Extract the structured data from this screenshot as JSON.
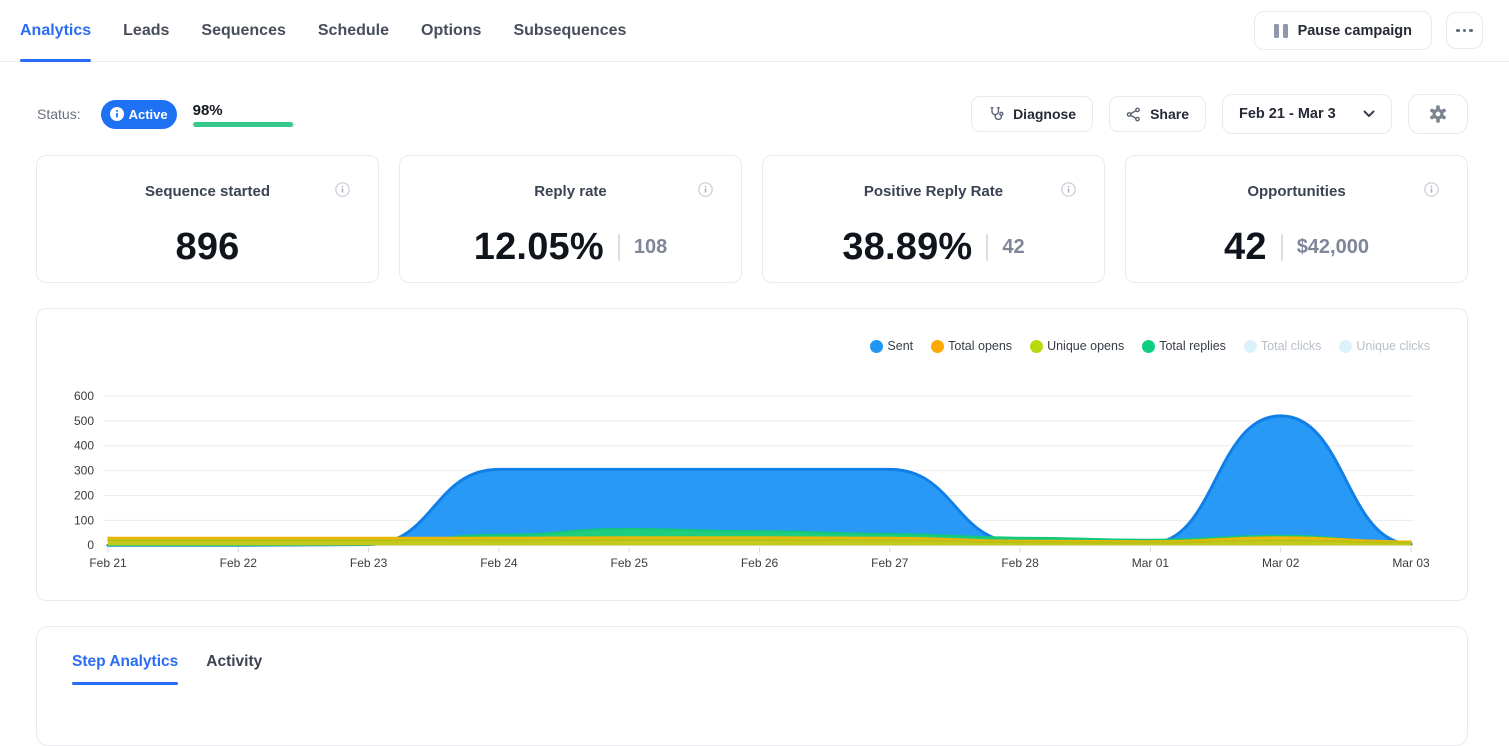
{
  "nav": {
    "tabs": [
      {
        "label": "Analytics",
        "active": true
      },
      {
        "label": "Leads"
      },
      {
        "label": "Sequences"
      },
      {
        "label": "Schedule"
      },
      {
        "label": "Options"
      },
      {
        "label": "Subsequences"
      }
    ],
    "pause_label": "Pause campaign"
  },
  "status": {
    "label": "Status:",
    "badge": "Active",
    "progress_label": "98%",
    "progress_pct": 98,
    "progress_color": "#36c98c"
  },
  "toolbar": {
    "diagnose_label": "Diagnose",
    "share_label": "Share",
    "date_range": "Feb 21 - Mar 3"
  },
  "metrics": [
    {
      "title": "Sequence started",
      "value": "896",
      "secondary": ""
    },
    {
      "title": "Reply rate",
      "value": "12.05%",
      "secondary": "108"
    },
    {
      "title": "Positive Reply Rate",
      "value": "38.89%",
      "secondary": "42"
    },
    {
      "title": "Opportunities",
      "value": "42",
      "secondary": "$42,000"
    }
  ],
  "chart_data": {
    "type": "area",
    "x": [
      "Feb 21",
      "Feb 22",
      "Feb 23",
      "Feb 24",
      "Feb 25",
      "Feb 26",
      "Feb 27",
      "Feb 28",
      "Mar 01",
      "Mar 02",
      "Mar 03"
    ],
    "ylim": [
      0,
      600
    ],
    "yticks": [
      0,
      100,
      200,
      300,
      400,
      500,
      600
    ],
    "grid": true,
    "legend_position": "top-right",
    "series": [
      {
        "name": "Sent",
        "color": "#2899f4",
        "stroke": "#117fe8",
        "values": [
          0,
          0,
          3,
          305,
          305,
          305,
          305,
          10,
          8,
          520,
          5
        ]
      },
      {
        "name": "Total replies",
        "color": "#1fce7f",
        "stroke": "#13c878",
        "values": [
          0,
          0,
          3,
          42,
          65,
          56,
          45,
          30,
          22,
          38,
          10
        ]
      },
      {
        "name": "Total opens",
        "color": "#f5c113",
        "stroke": "#ecb505",
        "values": [
          30,
          30,
          30,
          30,
          32,
          32,
          30,
          18,
          16,
          32,
          15
        ]
      },
      {
        "name": "Unique opens",
        "color": "#c3ca1c",
        "stroke": "#b7c013",
        "values": [
          20,
          20,
          20,
          20,
          22,
          22,
          20,
          12,
          10,
          20,
          10
        ]
      }
    ],
    "legend": [
      {
        "label": "Sent",
        "color": "#2196f3"
      },
      {
        "label": "Total opens",
        "color": "#ffa800"
      },
      {
        "label": "Unique opens",
        "color": "#b8d90c"
      },
      {
        "label": "Total replies",
        "color": "#0fce82"
      },
      {
        "label": "Total clicks",
        "color": "#dcf2fb",
        "disabled": true
      },
      {
        "label": "Unique clicks",
        "color": "#dcf2fb",
        "disabled": true
      }
    ]
  },
  "bottom_tabs": [
    {
      "label": "Step Analytics",
      "active": true
    },
    {
      "label": "Activity"
    }
  ]
}
